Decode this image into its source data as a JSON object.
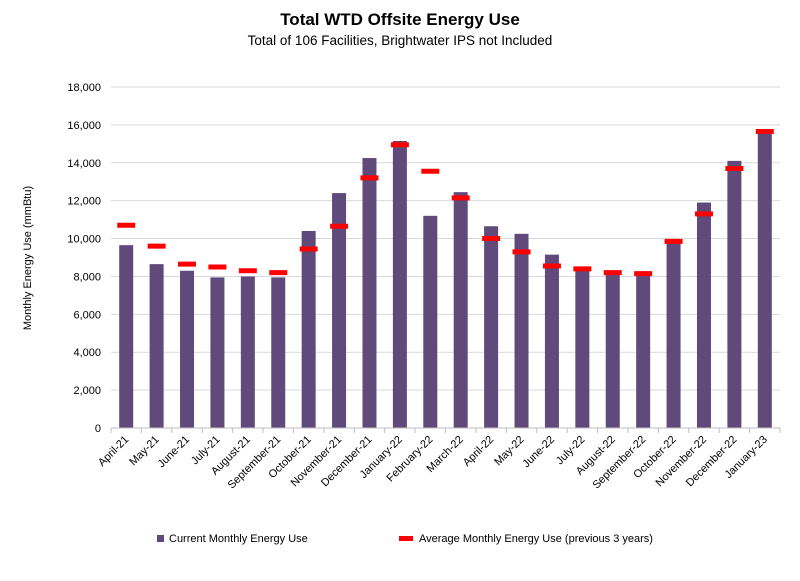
{
  "chart_data": {
    "type": "bar",
    "title": "Total WTD Offsite Energy Use",
    "subtitle": "Total of 106 Facilities, Brightwater IPS not Included",
    "ylabel": "Monthly Energy Use (mmBtu)",
    "xlabel": "",
    "ylim": [
      0,
      18000
    ],
    "yticks": [
      0,
      2000,
      4000,
      6000,
      8000,
      10000,
      12000,
      14000,
      16000,
      18000
    ],
    "ytick_labels": [
      "0",
      "2,000",
      "4,000",
      "6,000",
      "8,000",
      "10,000",
      "12,000",
      "14,000",
      "16,000",
      "18,000"
    ],
    "grid": true,
    "legend_position": "bottom",
    "categories": [
      "April-21",
      "May-21",
      "June-21",
      "July-21",
      "August-21",
      "September-21",
      "October-21",
      "November-21",
      "December-21",
      "January-22",
      "February-22",
      "March-22",
      "April-22",
      "May-22",
      "June-22",
      "July-22",
      "August-22",
      "September-22",
      "October-22",
      "November-22",
      "December-22",
      "January-23"
    ],
    "series": [
      {
        "name": "Current Monthly Energy Use",
        "type": "bar",
        "color": "#604a7b",
        "values": [
          9650,
          8650,
          8300,
          7950,
          8000,
          7950,
          10400,
          12400,
          14250,
          15150,
          11200,
          12450,
          10650,
          10250,
          9150,
          8350,
          8150,
          8100,
          9900,
          11900,
          14100,
          15700
        ]
      },
      {
        "name": "Average Monthly Energy Use (previous 3 years)",
        "type": "marker",
        "color": "#ff0000",
        "values": [
          10700,
          9600,
          8650,
          8500,
          8300,
          8200,
          9450,
          10650,
          13200,
          14950,
          13550,
          12150,
          10000,
          9300,
          8550,
          8400,
          8200,
          8150,
          9850,
          11300,
          13700,
          15650
        ]
      }
    ]
  }
}
